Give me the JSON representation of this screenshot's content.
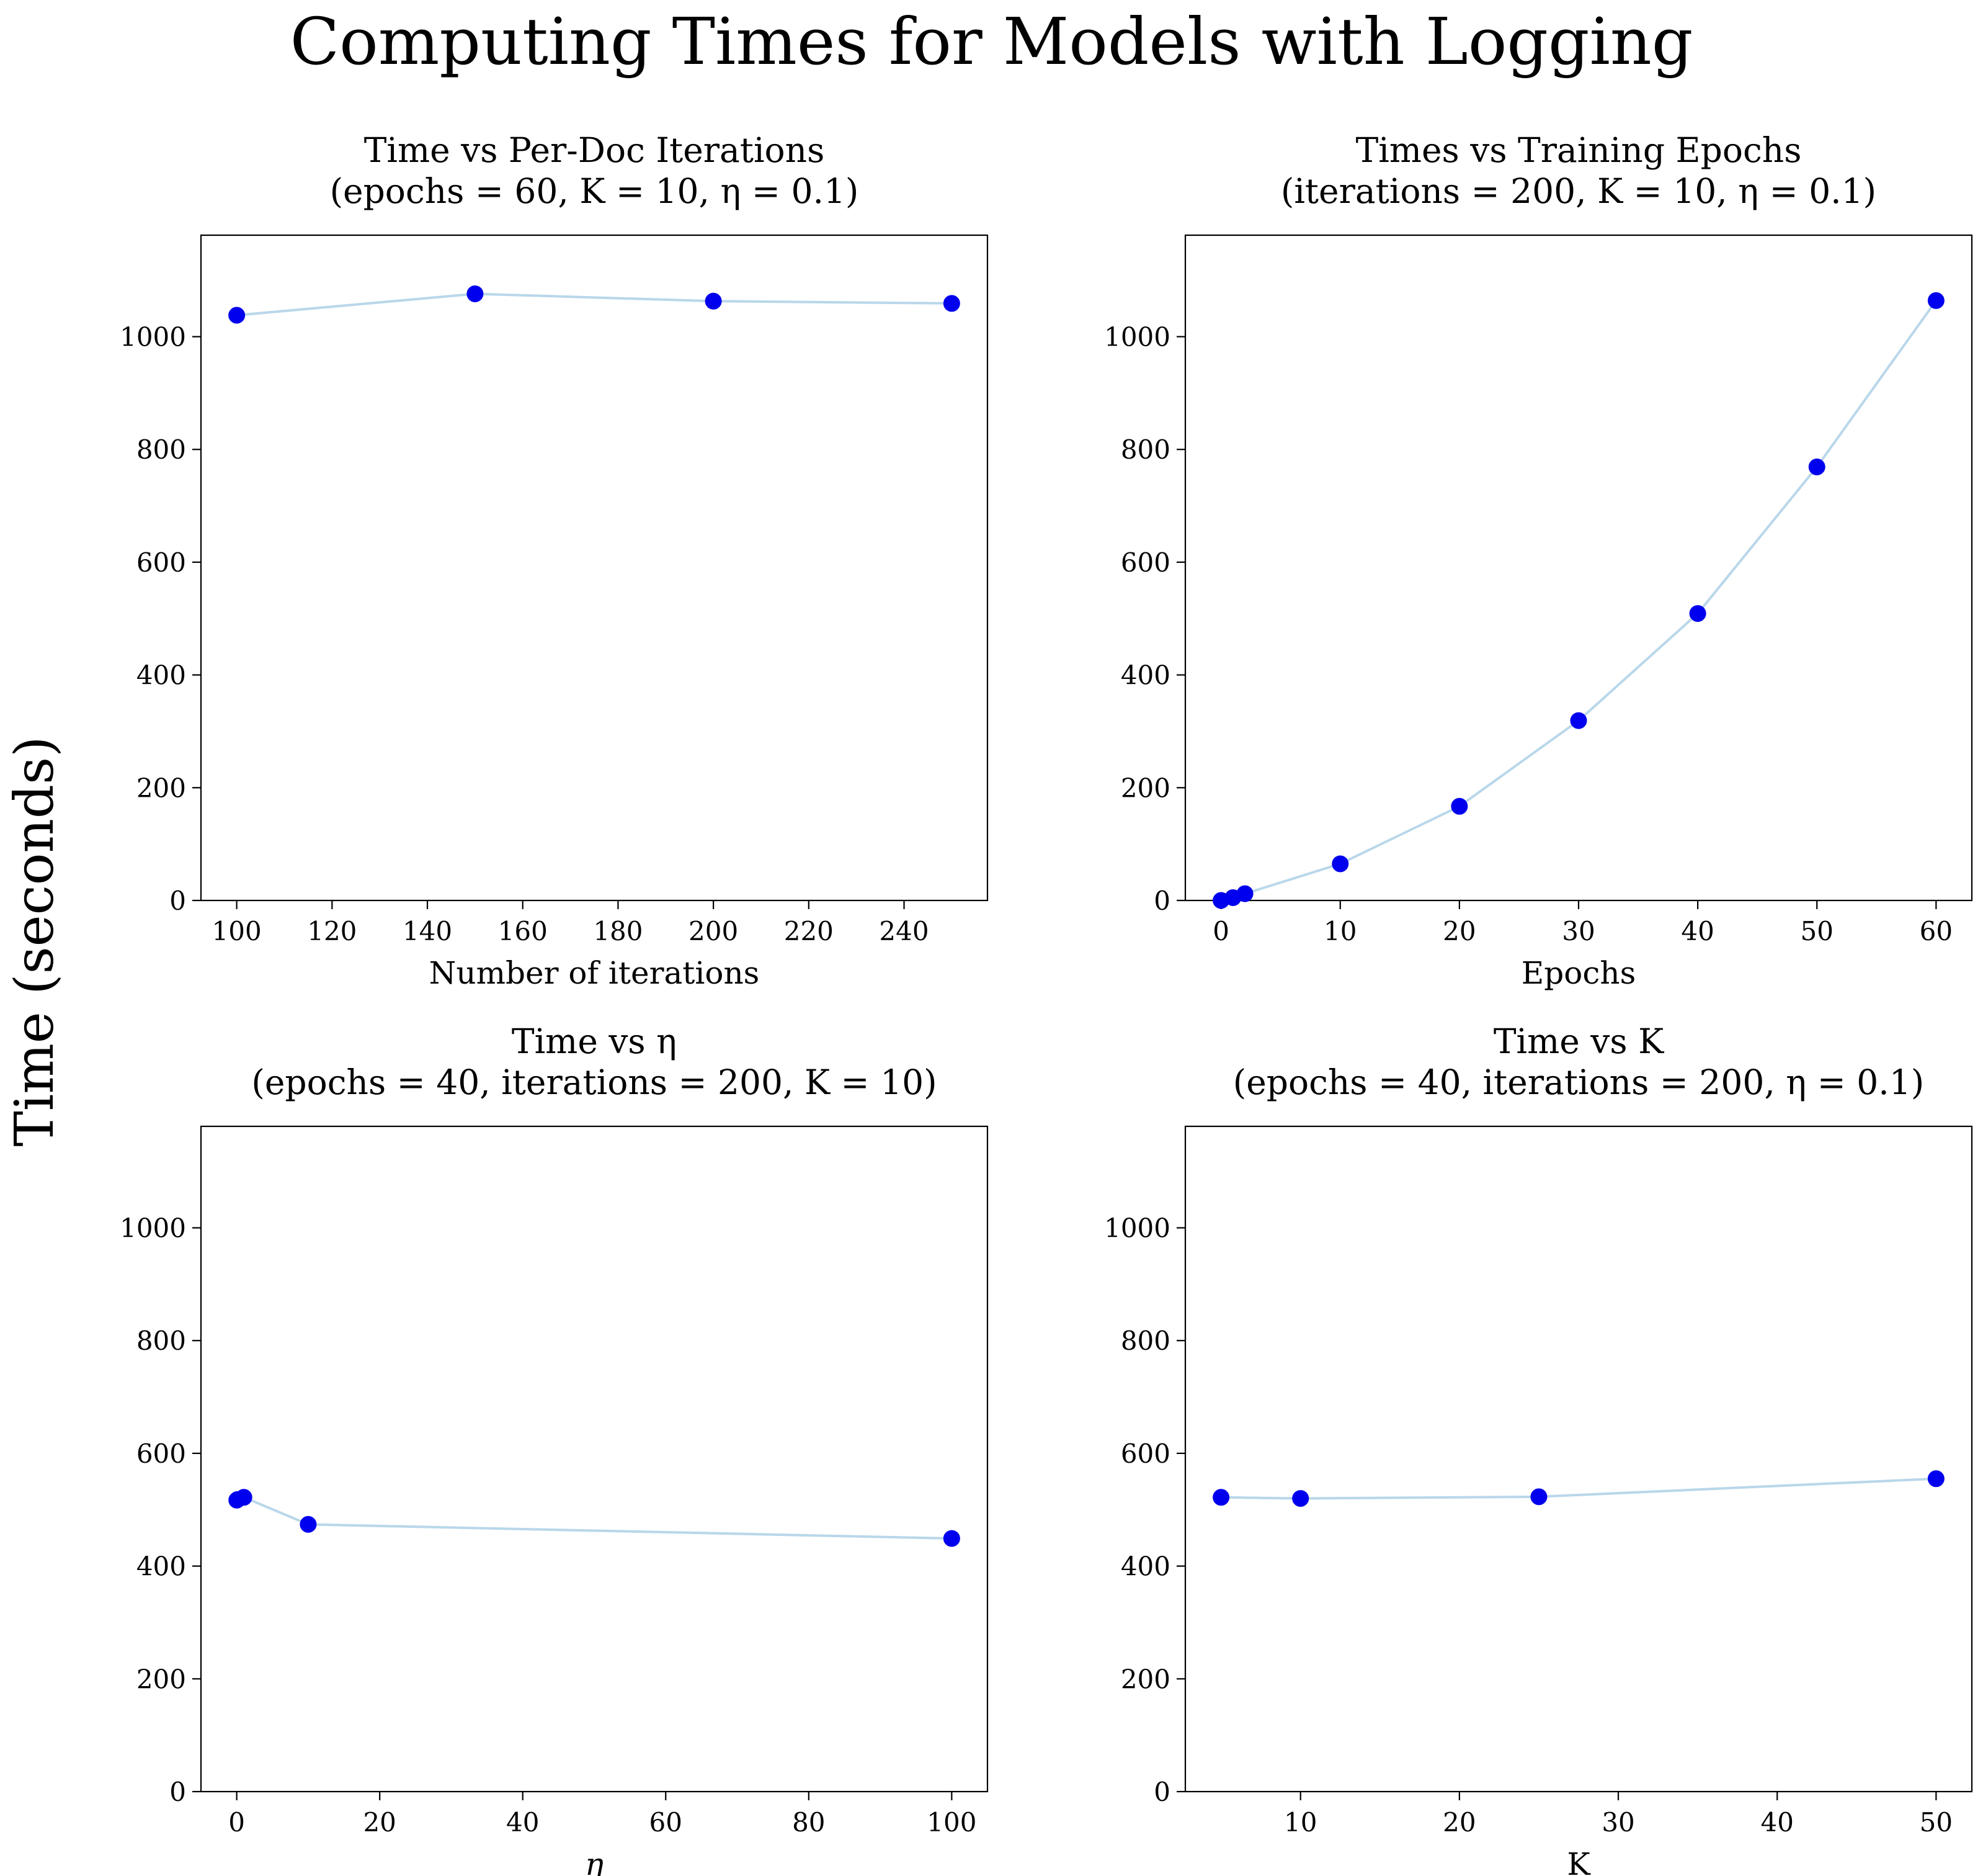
{
  "figure": {
    "suptitle": "Computing Times for Models with Logging",
    "supylabel": "Time (seconds)",
    "colors": {
      "line": "#b9d7ea",
      "marker": "#0000ee",
      "axes": "#000000",
      "background": "#ffffff"
    }
  },
  "chart_data": [
    {
      "type": "line",
      "title": "Time vs Per-Doc Iterations",
      "subtitle": "(epochs = 60, K = 10, η = 0.1)",
      "xlabel": "Number of iterations",
      "ylabel": "",
      "x": [
        100,
        150,
        200,
        250
      ],
      "series": [
        {
          "values": [
            1038,
            1076,
            1063,
            1059
          ]
        }
      ],
      "xlim": [
        92.5,
        257.5
      ],
      "ylim": [
        0,
        1180
      ],
      "xticks": [
        100,
        120,
        140,
        160,
        180,
        200,
        220,
        240
      ],
      "yticks": [
        0,
        200,
        400,
        600,
        800,
        1000
      ],
      "grid": false,
      "markers": true
    },
    {
      "type": "line",
      "title": "Times vs Training Epochs",
      "subtitle": "(iterations = 200, K = 10, η = 0.1)",
      "xlabel": "Epochs",
      "ylabel": "",
      "x": [
        0,
        1,
        2,
        10,
        20,
        30,
        40,
        50,
        60
      ],
      "series": [
        {
          "values": [
            0,
            5,
            12,
            65,
            167,
            319,
            509,
            769,
            1064
          ]
        }
      ],
      "xlim": [
        -3,
        63
      ],
      "ylim": [
        0,
        1180
      ],
      "xticks": [
        0,
        10,
        20,
        30,
        40,
        50,
        60
      ],
      "yticks": [
        0,
        200,
        400,
        600,
        800,
        1000
      ],
      "grid": false,
      "markers": true
    },
    {
      "type": "line",
      "title": "Time vs η",
      "subtitle": "(epochs = 40, iterations = 200, K = 10)",
      "xlabel": "η",
      "ylabel": "",
      "x": [
        0.01,
        0.1,
        1,
        10,
        100
      ],
      "series": [
        {
          "values": [
            517,
            518,
            522,
            474,
            449
          ]
        }
      ],
      "xlim": [
        -5,
        105
      ],
      "ylim": [
        0,
        1180
      ],
      "xticks": [
        0,
        20,
        40,
        60,
        80,
        100
      ],
      "yticks": [
        0,
        200,
        400,
        600,
        800,
        1000
      ],
      "grid": false,
      "markers": true
    },
    {
      "type": "line",
      "title": "Time vs K",
      "subtitle": "(epochs = 40, iterations = 200, η = 0.1)",
      "xlabel": "K",
      "ylabel": "",
      "x": [
        5,
        10,
        25,
        50
      ],
      "series": [
        {
          "values": [
            522,
            520,
            523,
            555
          ]
        }
      ],
      "xlim": [
        2.75,
        52.25
      ],
      "ylim": [
        0,
        1180
      ],
      "xticks": [
        10,
        20,
        30,
        40,
        50
      ],
      "yticks": [
        0,
        200,
        400,
        600,
        800,
        1000
      ],
      "grid": false,
      "markers": true
    }
  ]
}
